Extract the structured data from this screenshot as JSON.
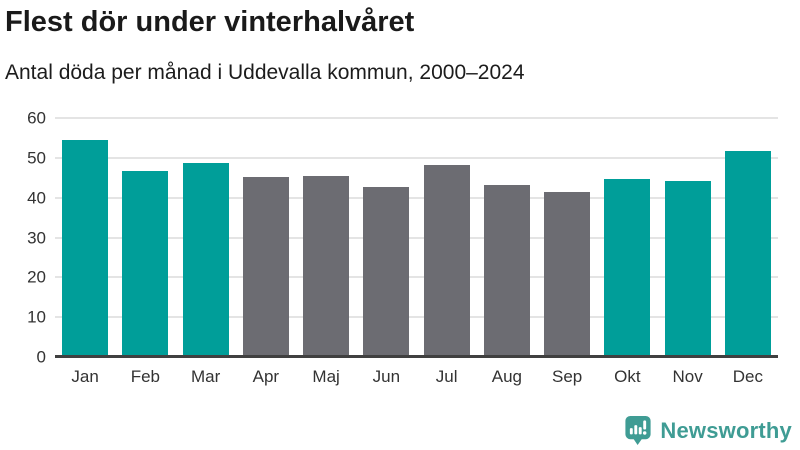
{
  "header": {
    "title": "Flest dör under vinterhalvåret",
    "subtitle": "Antal döda per månad i Uddevalla kommun, 2000–2024"
  },
  "chart_data": {
    "type": "bar",
    "title": "Flest dör under vinterhalvåret",
    "subtitle": "Antal döda per månad i Uddevalla kommun, 2000–2024",
    "categories": [
      "Jan",
      "Feb",
      "Mar",
      "Apr",
      "Maj",
      "Jun",
      "Jul",
      "Aug",
      "Sep",
      "Okt",
      "Nov",
      "Dec"
    ],
    "values": [
      54.6,
      46.6,
      48.8,
      45.3,
      45.4,
      42.8,
      48.2,
      43.3,
      41.4,
      44.8,
      44.1,
      51.6
    ],
    "bar_color_keys": [
      "winter",
      "winter",
      "winter",
      "summer",
      "summer",
      "summer",
      "summer",
      "summer",
      "summer",
      "winter",
      "winter",
      "winter"
    ],
    "colors": {
      "winter": "#009e99",
      "summer": "#6c6c72"
    },
    "xlabel": "",
    "ylabel": "",
    "ylim": [
      0,
      60
    ],
    "yticks": [
      0,
      10,
      20,
      30,
      40,
      50,
      60
    ],
    "grid": true,
    "legend": false,
    "gridline_color": "#e4e4e4",
    "axis_line_color": "#404040"
  },
  "footer": {
    "brand": "Newsworthy",
    "brand_color": "#3f9c94",
    "logo_icon": "bar-chart-speech-bubble-icon"
  }
}
